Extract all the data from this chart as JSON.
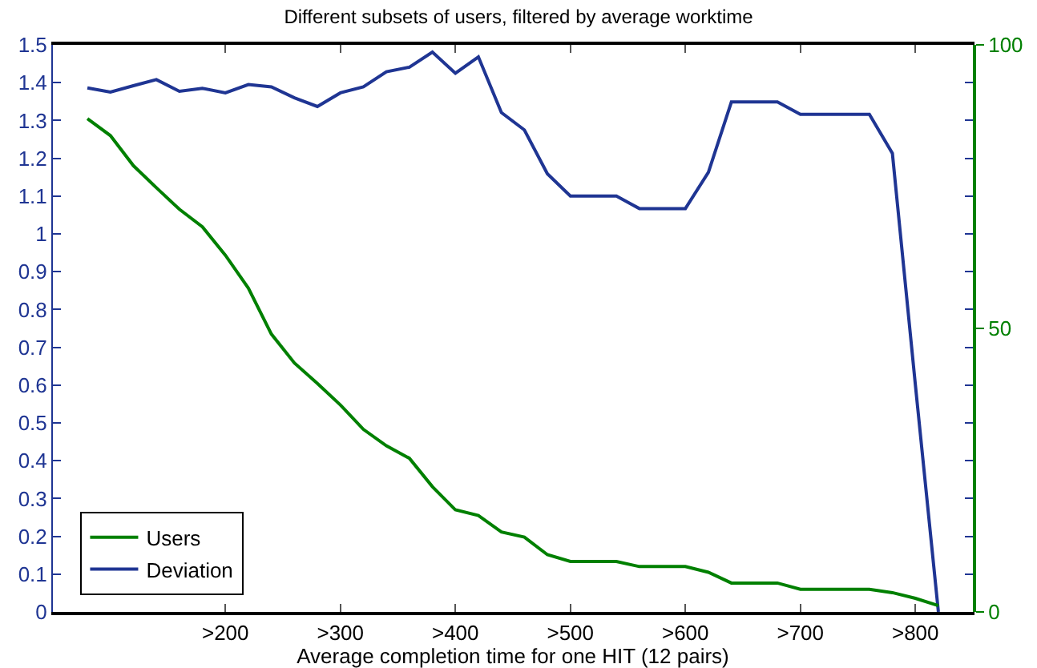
{
  "chart_data": {
    "type": "line",
    "title": "Different subsets of users, filtered by average worktime",
    "xlabel": "Average completion time for one HIT (12 pairs)",
    "categories": [
      null,
      null,
      null,
      null,
      null,
      null,
      ">200",
      null,
      null,
      null,
      null,
      ">300",
      null,
      null,
      null,
      null,
      ">400",
      null,
      null,
      null,
      null,
      ">500",
      null,
      null,
      null,
      null,
      ">600",
      null,
      null,
      null,
      null,
      ">700",
      null,
      null,
      null,
      null,
      ">800",
      null
    ],
    "series": [
      {
        "name": "Users",
        "color": "#008000",
        "axis": "y2",
        "values": [
          87,
          84,
          78.7,
          74.8,
          71,
          67.9,
          62.9,
          57.1,
          49,
          43.9,
          40.3,
          36.5,
          32.2,
          29.3,
          27.1,
          22.1,
          18,
          17,
          14.1,
          13.2,
          10.1,
          8.9,
          8.9,
          8.9,
          8,
          8,
          8,
          7,
          5.1,
          5.1,
          5.1,
          4,
          4,
          4,
          4,
          3.4,
          2.4,
          1.1
        ]
      },
      {
        "name": "Deviation",
        "color": "#1f3593",
        "values": [
          1.386,
          1.375,
          1.392,
          1.408,
          1.377,
          1.385,
          1.373,
          1.395,
          1.389,
          1.36,
          1.337,
          1.373,
          1.389,
          1.429,
          1.441,
          1.481,
          1.425,
          1.468,
          1.321,
          1.275,
          1.159,
          1.1,
          1.1,
          1.1,
          1.067,
          1.067,
          1.067,
          1.163,
          1.349,
          1.349,
          1.349,
          1.316,
          1.316,
          1.316,
          1.316,
          1.213,
          0.6,
          0
        ]
      }
    ],
    "ylim": [
      0,
      1.5
    ],
    "yticks": [
      0,
      0.1,
      0.2,
      0.3,
      0.4,
      0.5,
      0.6,
      0.7,
      0.8,
      0.9,
      1,
      1.1,
      1.2,
      1.3,
      1.4,
      1.5
    ],
    "y2lim": [
      0,
      100
    ],
    "y2ticks": [
      0,
      50,
      100
    ],
    "grid": false,
    "legend": "bottom left",
    "marker": "none",
    "line_style": "solid"
  }
}
